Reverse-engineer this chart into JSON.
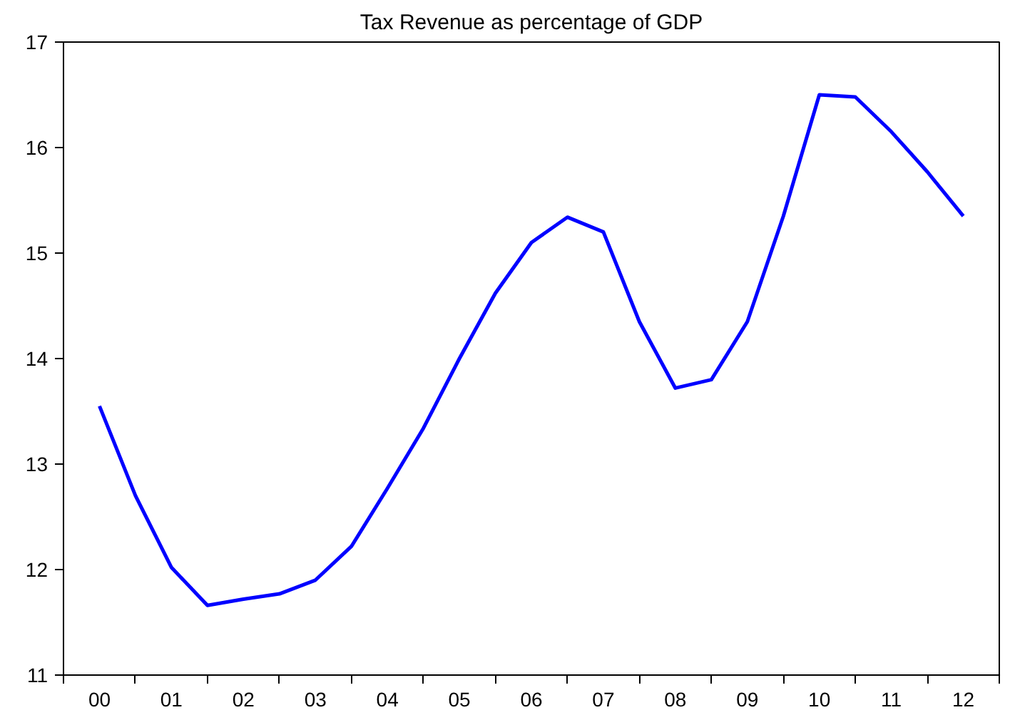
{
  "chart_data": {
    "type": "line",
    "title": "Tax Revenue as percentage of GDP",
    "x": [
      0,
      0.5,
      1,
      1.5,
      2,
      2.5,
      3,
      3.5,
      4,
      4.5,
      5,
      5.5,
      6,
      6.5,
      7,
      7.5,
      8,
      8.5,
      9,
      9.5,
      10,
      10.5,
      11,
      11.5,
      12
    ],
    "series": [
      {
        "color": "#0000ff",
        "values": [
          13.55,
          12.7,
          12.02,
          11.66,
          11.72,
          11.77,
          11.9,
          12.22,
          12.77,
          13.34,
          14.0,
          14.62,
          15.1,
          15.34,
          15.2,
          14.35,
          13.72,
          13.8,
          14.35,
          15.35,
          16.5,
          16.48,
          16.15,
          15.77,
          15.35
        ]
      }
    ],
    "xlim": [
      -0.5,
      12.5
    ],
    "xticks": [
      {
        "value": -0.5,
        "label": null
      },
      {
        "value": 0,
        "label": "00"
      },
      {
        "value": 0.5,
        "label": null
      },
      {
        "value": 1,
        "label": "01"
      },
      {
        "value": 1.5,
        "label": null
      },
      {
        "value": 2,
        "label": "02"
      },
      {
        "value": 2.5,
        "label": null
      },
      {
        "value": 3,
        "label": "03"
      },
      {
        "value": 3.5,
        "label": null
      },
      {
        "value": 4,
        "label": "04"
      },
      {
        "value": 4.5,
        "label": null
      },
      {
        "value": 5,
        "label": "05"
      },
      {
        "value": 5.5,
        "label": null
      },
      {
        "value": 6,
        "label": "06"
      },
      {
        "value": 6.5,
        "label": null
      },
      {
        "value": 7,
        "label": "07"
      },
      {
        "value": 7.5,
        "label": null
      },
      {
        "value": 8,
        "label": "08"
      },
      {
        "value": 8.5,
        "label": null
      },
      {
        "value": 9,
        "label": "09"
      },
      {
        "value": 9.5,
        "label": null
      },
      {
        "value": 10,
        "label": "10"
      },
      {
        "value": 10.5,
        "label": null
      },
      {
        "value": 11,
        "label": "11"
      },
      {
        "value": 11.5,
        "label": null
      },
      {
        "value": 12,
        "label": "12"
      },
      {
        "value": 12.5,
        "label": null
      }
    ],
    "ylim": [
      11,
      17
    ],
    "yticks": [
      11,
      12,
      13,
      14,
      15,
      16,
      17
    ],
    "grid": false,
    "marker": "none",
    "line_style": "solid"
  }
}
